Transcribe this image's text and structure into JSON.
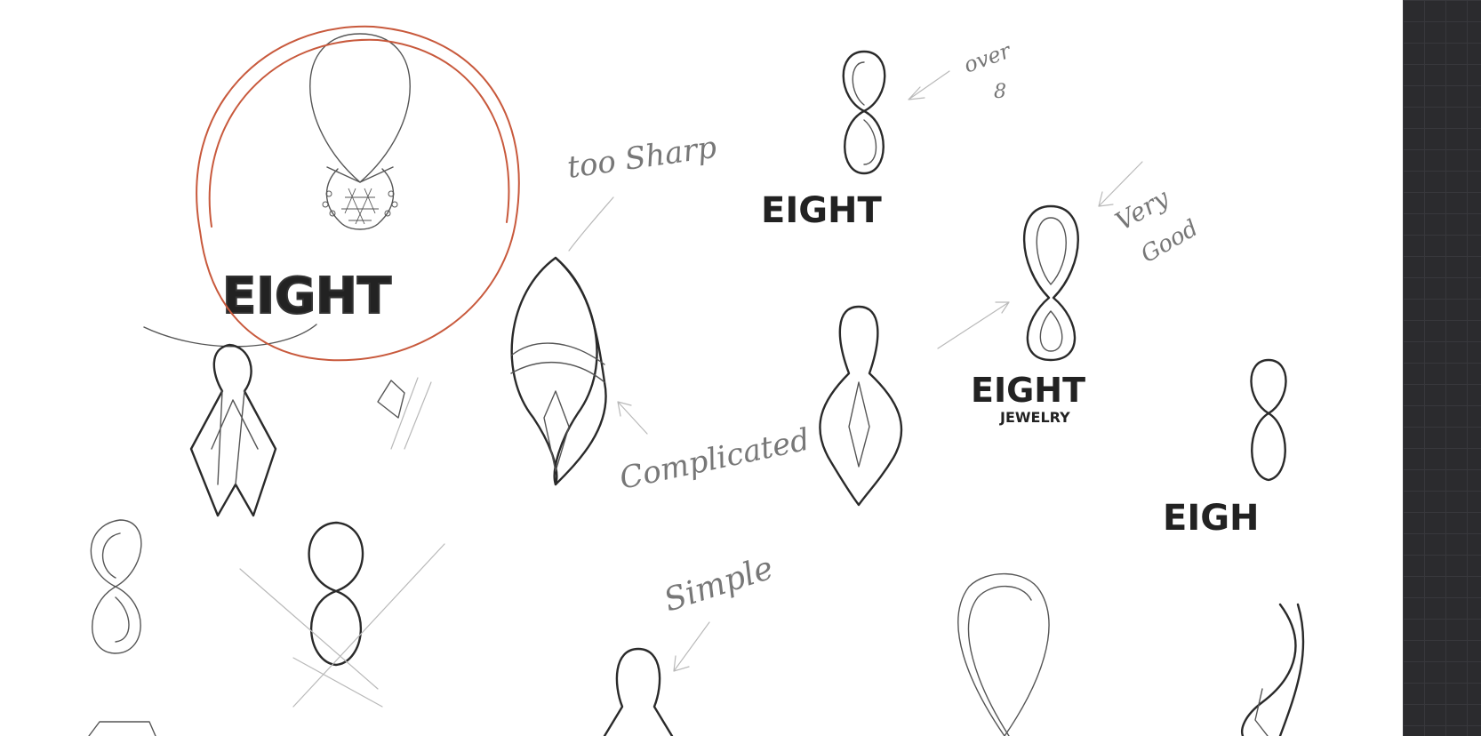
{
  "sketch": {
    "wordmarks": {
      "main": "EIGHT",
      "top": "EIGHT",
      "right": "EIGHT",
      "right_sub": "JEWELRY",
      "edge": "EIGH"
    },
    "notes": {
      "too_sharp": "too Sharp",
      "over": "over",
      "over_mark": "8",
      "very_good_1": "Very",
      "very_good_2": "Good",
      "complicated": "Complicated",
      "simple": "Simple"
    },
    "colors": {
      "ink": "#2a2a2a",
      "pencil": "#777777",
      "highlight_circle": "#c8593c",
      "panel": "#2b2b2e"
    }
  }
}
